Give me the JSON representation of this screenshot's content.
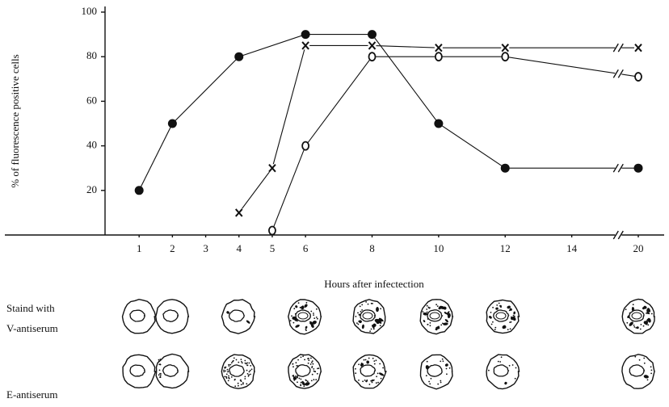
{
  "chart_data": {
    "type": "line",
    "y_label": "% of fluorescence positive cells",
    "x_label": "Hours after infectection",
    "xlim": [
      0,
      20
    ],
    "xticks": [
      1,
      2,
      3,
      4,
      5,
      6,
      8,
      10,
      12,
      14,
      20
    ],
    "x_axis_break": true,
    "ylim": [
      0,
      100
    ],
    "yticks": [
      20,
      40,
      60,
      80,
      100
    ],
    "grid": false,
    "series": [
      {
        "marker": "filled-circle",
        "color": "#111111",
        "x": [
          1,
          2,
          4,
          6,
          8,
          10,
          12,
          20
        ],
        "values": [
          20,
          50,
          80,
          90,
          90,
          50,
          30,
          30
        ]
      },
      {
        "marker": "cross",
        "color": "#111111",
        "x": [
          4,
          5,
          6,
          8,
          10,
          12,
          20
        ],
        "values": [
          10,
          30,
          85,
          85,
          84,
          84,
          84
        ]
      },
      {
        "marker": "open-circle",
        "color": "#111111",
        "x": [
          5,
          6,
          8,
          10,
          12,
          20
        ],
        "values": [
          2,
          40,
          80,
          80,
          80,
          71
        ]
      }
    ]
  },
  "panel": {
    "row_title": "Staind with",
    "rows": [
      "V-antiserum",
      "E-antiserum"
    ]
  }
}
